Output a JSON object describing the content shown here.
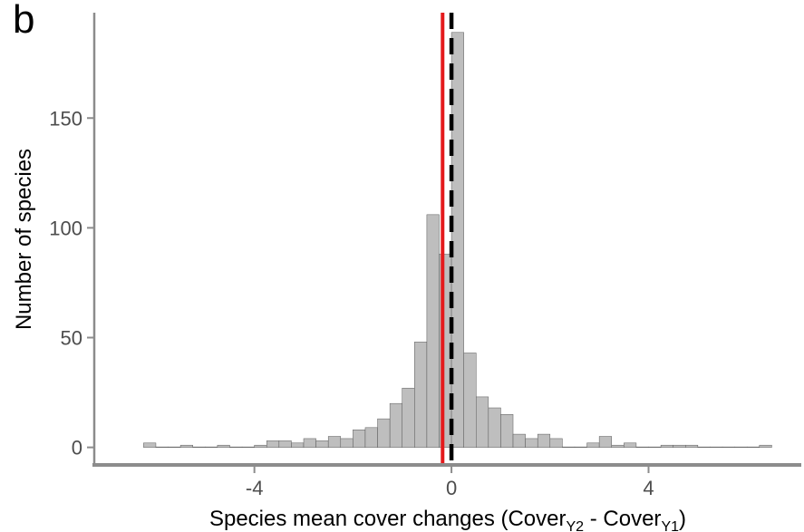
{
  "panel_label": "b",
  "chart_data": {
    "type": "bar",
    "subtype": "histogram",
    "title": "",
    "xlabel": "Species mean cover changes (Cover",
    "xlabel_sub1": "Y2",
    "xlabel_mid": " - Cover",
    "xlabel_sub2": "Y1",
    "xlabel_end": ")",
    "ylabel": "Number of species",
    "xlim": [
      -7.25,
      7.1
    ],
    "ylim": [
      -8,
      198
    ],
    "x_ticks": [
      -4,
      0,
      4
    ],
    "x_tick_labels": [
      "-4",
      "0",
      "4"
    ],
    "y_ticks": [
      0,
      50,
      100,
      150
    ],
    "y_tick_labels": [
      "0",
      "50",
      "100",
      "150"
    ],
    "bin_width": 0.25,
    "bins": [
      {
        "x0": -6.25,
        "x1": -6.0,
        "count": 2
      },
      {
        "x0": -6.0,
        "x1": -5.75,
        "count": 0
      },
      {
        "x0": -5.75,
        "x1": -5.5,
        "count": 0
      },
      {
        "x0": -5.5,
        "x1": -5.25,
        "count": 1
      },
      {
        "x0": -5.25,
        "x1": -5.0,
        "count": 0
      },
      {
        "x0": -5.0,
        "x1": -4.75,
        "count": 0
      },
      {
        "x0": -4.75,
        "x1": -4.5,
        "count": 1
      },
      {
        "x0": -4.5,
        "x1": -4.25,
        "count": 0
      },
      {
        "x0": -4.25,
        "x1": -4.0,
        "count": 0
      },
      {
        "x0": -4.0,
        "x1": -3.75,
        "count": 1
      },
      {
        "x0": -3.75,
        "x1": -3.5,
        "count": 3
      },
      {
        "x0": -3.5,
        "x1": -3.25,
        "count": 3
      },
      {
        "x0": -3.25,
        "x1": -3.0,
        "count": 2
      },
      {
        "x0": -3.0,
        "x1": -2.75,
        "count": 4
      },
      {
        "x0": -2.75,
        "x1": -2.5,
        "count": 3
      },
      {
        "x0": -2.5,
        "x1": -2.25,
        "count": 5
      },
      {
        "x0": -2.25,
        "x1": -2.0,
        "count": 4
      },
      {
        "x0": -2.0,
        "x1": -1.75,
        "count": 8
      },
      {
        "x0": -1.75,
        "x1": -1.5,
        "count": 9
      },
      {
        "x0": -1.5,
        "x1": -1.25,
        "count": 13
      },
      {
        "x0": -1.25,
        "x1": -1.0,
        "count": 20
      },
      {
        "x0": -1.0,
        "x1": -0.75,
        "count": 27
      },
      {
        "x0": -0.75,
        "x1": -0.5,
        "count": 48
      },
      {
        "x0": -0.5,
        "x1": -0.25,
        "count": 106
      },
      {
        "x0": -0.25,
        "x1": 0.0,
        "count": 88
      },
      {
        "x0": 0.0,
        "x1": 0.25,
        "count": 189
      },
      {
        "x0": 0.25,
        "x1": 0.5,
        "count": 43
      },
      {
        "x0": 0.5,
        "x1": 0.75,
        "count": 23
      },
      {
        "x0": 0.75,
        "x1": 1.0,
        "count": 18
      },
      {
        "x0": 1.0,
        "x1": 1.25,
        "count": 15
      },
      {
        "x0": 1.25,
        "x1": 1.5,
        "count": 6
      },
      {
        "x0": 1.5,
        "x1": 1.75,
        "count": 4
      },
      {
        "x0": 1.75,
        "x1": 2.0,
        "count": 6
      },
      {
        "x0": 2.0,
        "x1": 2.25,
        "count": 4
      },
      {
        "x0": 2.25,
        "x1": 2.5,
        "count": 0
      },
      {
        "x0": 2.5,
        "x1": 2.75,
        "count": 0
      },
      {
        "x0": 2.75,
        "x1": 3.0,
        "count": 2
      },
      {
        "x0": 3.0,
        "x1": 3.25,
        "count": 5
      },
      {
        "x0": 3.25,
        "x1": 3.5,
        "count": 1
      },
      {
        "x0": 3.5,
        "x1": 3.75,
        "count": 2
      },
      {
        "x0": 3.75,
        "x1": 4.0,
        "count": 0
      },
      {
        "x0": 4.0,
        "x1": 4.25,
        "count": 0
      },
      {
        "x0": 4.25,
        "x1": 4.5,
        "count": 1
      },
      {
        "x0": 4.5,
        "x1": 4.75,
        "count": 1
      },
      {
        "x0": 4.75,
        "x1": 5.0,
        "count": 1
      },
      {
        "x0": 5.0,
        "x1": 5.25,
        "count": 0
      },
      {
        "x0": 5.25,
        "x1": 5.5,
        "count": 0
      },
      {
        "x0": 5.5,
        "x1": 5.75,
        "count": 0
      },
      {
        "x0": 5.75,
        "x1": 6.0,
        "count": 0
      },
      {
        "x0": 6.0,
        "x1": 6.25,
        "count": 0
      },
      {
        "x0": 6.25,
        "x1": 6.5,
        "count": 1
      }
    ],
    "reference_lines": [
      {
        "name": "mean-line",
        "x": -0.18,
        "color": "#e41a1c",
        "style": "solid"
      },
      {
        "name": "zero-line",
        "x": 0,
        "color": "#000000",
        "style": "dashed"
      }
    ],
    "bar_fill": "#bebebe",
    "bar_stroke": "#595959",
    "axis_color": "#8c8c8c",
    "grid": false,
    "legend": "none"
  }
}
